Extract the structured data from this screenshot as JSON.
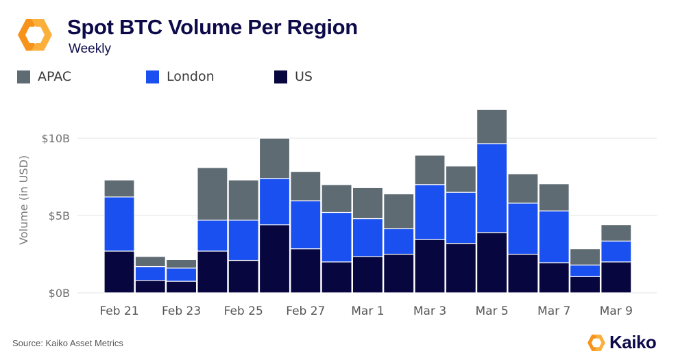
{
  "header": {
    "title": "Spot BTC Volume Per Region",
    "subtitle": "Weekly"
  },
  "legend": [
    {
      "label": "APAC",
      "color": "#5f6b73"
    },
    {
      "label": "London",
      "color": "#1a4ff0"
    },
    {
      "label": "US",
      "color": "#07063e"
    }
  ],
  "chart_data": {
    "type": "bar",
    "stacked": true,
    "title": "Spot BTC Volume Per Region",
    "subtitle": "Weekly",
    "xlabel": "",
    "ylabel": "Volume (in USD)",
    "ylim": [
      0,
      12
    ],
    "yticks": [
      0,
      5,
      10
    ],
    "ytick_labels": [
      "$0B",
      "$5B",
      "$10B"
    ],
    "grid": true,
    "legend_position": "top-left",
    "categories": [
      "Feb 21",
      "Feb 22",
      "Feb 23",
      "Feb 24",
      "Feb 25",
      "Feb 26",
      "Feb 27",
      "Feb 28",
      "Mar 1",
      "Mar 2",
      "Mar 3",
      "Mar 4",
      "Mar 5",
      "Mar 6",
      "Mar 7",
      "Mar 8",
      "Mar 9"
    ],
    "xtick_labels": [
      "Feb 21",
      "",
      "Feb 23",
      "",
      "Feb 25",
      "",
      "Feb 27",
      "",
      "Mar 1",
      "",
      "Mar 3",
      "",
      "Mar 5",
      "",
      "Mar 7",
      "",
      "Mar 9"
    ],
    "series": [
      {
        "name": "US",
        "color": "#07063e",
        "values": [
          2.7,
          0.8,
          0.75,
          2.7,
          2.1,
          4.4,
          2.85,
          2.0,
          2.35,
          2.5,
          3.45,
          3.2,
          3.9,
          2.5,
          1.95,
          1.05,
          2.0
        ]
      },
      {
        "name": "London",
        "color": "#1a4ff0",
        "values": [
          3.5,
          0.9,
          0.85,
          2.0,
          2.6,
          3.0,
          3.1,
          3.2,
          2.45,
          1.65,
          3.55,
          3.3,
          5.75,
          3.3,
          3.35,
          0.75,
          1.35
        ]
      },
      {
        "name": "APAC",
        "color": "#5f6b73",
        "values": [
          1.1,
          0.65,
          0.55,
          3.4,
          2.6,
          2.6,
          1.9,
          1.8,
          2.0,
          2.25,
          1.9,
          1.7,
          2.2,
          1.9,
          1.75,
          1.05,
          1.05
        ]
      }
    ]
  },
  "footer": {
    "source": "Source: Kaiko Asset Metrics",
    "brand": "Kaiko"
  }
}
